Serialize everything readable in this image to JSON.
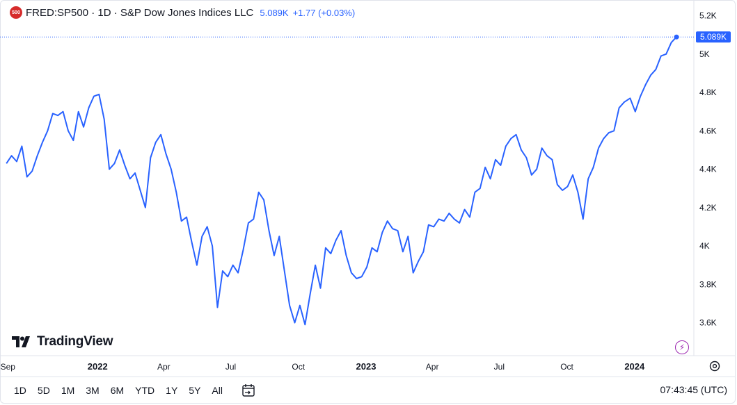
{
  "legend": {
    "badge": "500",
    "symbol": "FRED:SP500 · 1D · S&P Dow Jones Indices LLC",
    "price": "5.089K",
    "change": "+1.77 (+0.03%)"
  },
  "colors": {
    "line": "#2962ff",
    "last_price_bg": "#2962ff",
    "accent_purple": "#9c27b0"
  },
  "chart_data": {
    "type": "line",
    "title": "FRED:SP500 · 1D · S&P Dow Jones Indices LLC",
    "series": [
      {
        "name": "FRED:SP500",
        "points": [
          [
            "2021-08-30",
            4430
          ],
          [
            "2021-09-06",
            4470
          ],
          [
            "2021-09-13",
            4440
          ],
          [
            "2021-09-20",
            4520
          ],
          [
            "2021-09-27",
            4360
          ],
          [
            "2021-10-04",
            4390
          ],
          [
            "2021-10-11",
            4470
          ],
          [
            "2021-10-18",
            4540
          ],
          [
            "2021-10-25",
            4600
          ],
          [
            "2021-11-01",
            4690
          ],
          [
            "2021-11-08",
            4680
          ],
          [
            "2021-11-15",
            4700
          ],
          [
            "2021-11-22",
            4600
          ],
          [
            "2021-11-29",
            4550
          ],
          [
            "2021-12-06",
            4700
          ],
          [
            "2021-12-13",
            4620
          ],
          [
            "2021-12-20",
            4720
          ],
          [
            "2021-12-27",
            4780
          ],
          [
            "2022-01-03",
            4790
          ],
          [
            "2022-01-10",
            4660
          ],
          [
            "2022-01-17",
            4400
          ],
          [
            "2022-01-24",
            4430
          ],
          [
            "2022-01-31",
            4500
          ],
          [
            "2022-02-07",
            4420
          ],
          [
            "2022-02-14",
            4350
          ],
          [
            "2022-02-21",
            4380
          ],
          [
            "2022-03-07",
            4200
          ],
          [
            "2022-03-14",
            4460
          ],
          [
            "2022-03-21",
            4540
          ],
          [
            "2022-03-28",
            4580
          ],
          [
            "2022-04-04",
            4480
          ],
          [
            "2022-04-11",
            4400
          ],
          [
            "2022-04-18",
            4280
          ],
          [
            "2022-04-25",
            4130
          ],
          [
            "2022-05-02",
            4150
          ],
          [
            "2022-05-09",
            4020
          ],
          [
            "2022-05-16",
            3900
          ],
          [
            "2022-05-23",
            4050
          ],
          [
            "2022-05-30",
            4100
          ],
          [
            "2022-06-06",
            4000
          ],
          [
            "2022-06-13",
            3680
          ],
          [
            "2022-06-20",
            3870
          ],
          [
            "2022-06-27",
            3840
          ],
          [
            "2022-07-04",
            3900
          ],
          [
            "2022-07-11",
            3860
          ],
          [
            "2022-07-18",
            3980
          ],
          [
            "2022-07-25",
            4120
          ],
          [
            "2022-08-01",
            4140
          ],
          [
            "2022-08-08",
            4280
          ],
          [
            "2022-08-15",
            4240
          ],
          [
            "2022-08-22",
            4080
          ],
          [
            "2022-08-29",
            3950
          ],
          [
            "2022-09-05",
            4050
          ],
          [
            "2022-09-12",
            3870
          ],
          [
            "2022-09-19",
            3690
          ],
          [
            "2022-09-26",
            3600
          ],
          [
            "2022-10-03",
            3690
          ],
          [
            "2022-10-10",
            3590
          ],
          [
            "2022-10-17",
            3750
          ],
          [
            "2022-10-24",
            3900
          ],
          [
            "2022-10-31",
            3780
          ],
          [
            "2022-11-07",
            3990
          ],
          [
            "2022-11-14",
            3960
          ],
          [
            "2022-11-21",
            4030
          ],
          [
            "2022-11-28",
            4080
          ],
          [
            "2022-12-05",
            3950
          ],
          [
            "2022-12-12",
            3860
          ],
          [
            "2022-12-19",
            3830
          ],
          [
            "2022-12-26",
            3840
          ],
          [
            "2023-01-02",
            3890
          ],
          [
            "2023-01-09",
            3990
          ],
          [
            "2023-01-16",
            3970
          ],
          [
            "2023-01-23",
            4070
          ],
          [
            "2023-01-30",
            4130
          ],
          [
            "2023-02-06",
            4090
          ],
          [
            "2023-02-13",
            4080
          ],
          [
            "2023-02-20",
            3970
          ],
          [
            "2023-02-27",
            4050
          ],
          [
            "2023-03-06",
            3860
          ],
          [
            "2023-03-13",
            3920
          ],
          [
            "2023-03-20",
            3970
          ],
          [
            "2023-03-27",
            4110
          ],
          [
            "2023-04-03",
            4100
          ],
          [
            "2023-04-10",
            4140
          ],
          [
            "2023-04-17",
            4130
          ],
          [
            "2023-04-24",
            4170
          ],
          [
            "2023-05-01",
            4140
          ],
          [
            "2023-05-08",
            4120
          ],
          [
            "2023-05-15",
            4190
          ],
          [
            "2023-05-22",
            4150
          ],
          [
            "2023-05-29",
            4280
          ],
          [
            "2023-06-05",
            4300
          ],
          [
            "2023-06-12",
            4410
          ],
          [
            "2023-06-19",
            4350
          ],
          [
            "2023-06-26",
            4450
          ],
          [
            "2023-07-03",
            4420
          ],
          [
            "2023-07-10",
            4520
          ],
          [
            "2023-07-17",
            4560
          ],
          [
            "2023-07-24",
            4580
          ],
          [
            "2023-07-31",
            4500
          ],
          [
            "2023-08-07",
            4460
          ],
          [
            "2023-08-14",
            4370
          ],
          [
            "2023-08-21",
            4400
          ],
          [
            "2023-08-28",
            4510
          ],
          [
            "2023-09-04",
            4470
          ],
          [
            "2023-09-11",
            4450
          ],
          [
            "2023-09-18",
            4320
          ],
          [
            "2023-09-25",
            4290
          ],
          [
            "2023-10-02",
            4310
          ],
          [
            "2023-10-09",
            4370
          ],
          [
            "2023-10-16",
            4280
          ],
          [
            "2023-10-23",
            4140
          ],
          [
            "2023-10-30",
            4350
          ],
          [
            "2023-11-06",
            4410
          ],
          [
            "2023-11-13",
            4510
          ],
          [
            "2023-11-20",
            4560
          ],
          [
            "2023-11-27",
            4590
          ],
          [
            "2023-12-04",
            4600
          ],
          [
            "2023-12-11",
            4720
          ],
          [
            "2023-12-18",
            4750
          ],
          [
            "2023-12-26",
            4770
          ],
          [
            "2024-01-02",
            4700
          ],
          [
            "2024-01-09",
            4780
          ],
          [
            "2024-01-16",
            4840
          ],
          [
            "2024-01-23",
            4890
          ],
          [
            "2024-01-30",
            4920
          ],
          [
            "2024-02-06",
            4990
          ],
          [
            "2024-02-13",
            5000
          ],
          [
            "2024-02-20",
            5060
          ],
          [
            "2024-02-27",
            5089
          ]
        ]
      }
    ],
    "last_value": 5089,
    "ylim": [
      3450,
      5260
    ],
    "y_ticks": [
      {
        "value": 5200,
        "label": "5.2K"
      },
      {
        "value": 5000,
        "label": "5K"
      },
      {
        "value": 4800,
        "label": "4.8K"
      },
      {
        "value": 4600,
        "label": "4.6K"
      },
      {
        "value": 4400,
        "label": "4.4K"
      },
      {
        "value": 4200,
        "label": "4.2K"
      },
      {
        "value": 4000,
        "label": "4K"
      },
      {
        "value": 3800,
        "label": "3.8K"
      },
      {
        "value": 3600,
        "label": "3.6K"
      }
    ],
    "last_price_label": "5.089K",
    "x_range": [
      "2021-08-27",
      "2024-03-15"
    ],
    "x_ticks": [
      {
        "date": "2021-09-01",
        "label": "Sep",
        "bold": false
      },
      {
        "date": "2022-01-01",
        "label": "2022",
        "bold": true
      },
      {
        "date": "2022-04-01",
        "label": "Apr",
        "bold": false
      },
      {
        "date": "2022-07-01",
        "label": "Jul",
        "bold": false
      },
      {
        "date": "2022-10-01",
        "label": "Oct",
        "bold": false
      },
      {
        "date": "2023-01-01",
        "label": "2023",
        "bold": true
      },
      {
        "date": "2023-04-01",
        "label": "Apr",
        "bold": false
      },
      {
        "date": "2023-07-01",
        "label": "Jul",
        "bold": false
      },
      {
        "date": "2023-10-01",
        "label": "Oct",
        "bold": false
      },
      {
        "date": "2024-01-01",
        "label": "2024",
        "bold": true
      }
    ],
    "grid": false
  },
  "branding": {
    "logo_text": "TradingView"
  },
  "toolbar": {
    "ranges": [
      "1D",
      "5D",
      "1M",
      "3M",
      "6M",
      "YTD",
      "1Y",
      "5Y",
      "All"
    ],
    "calendar_icon": "calendar-goto-icon",
    "clock": "07:43:45 (UTC)"
  }
}
